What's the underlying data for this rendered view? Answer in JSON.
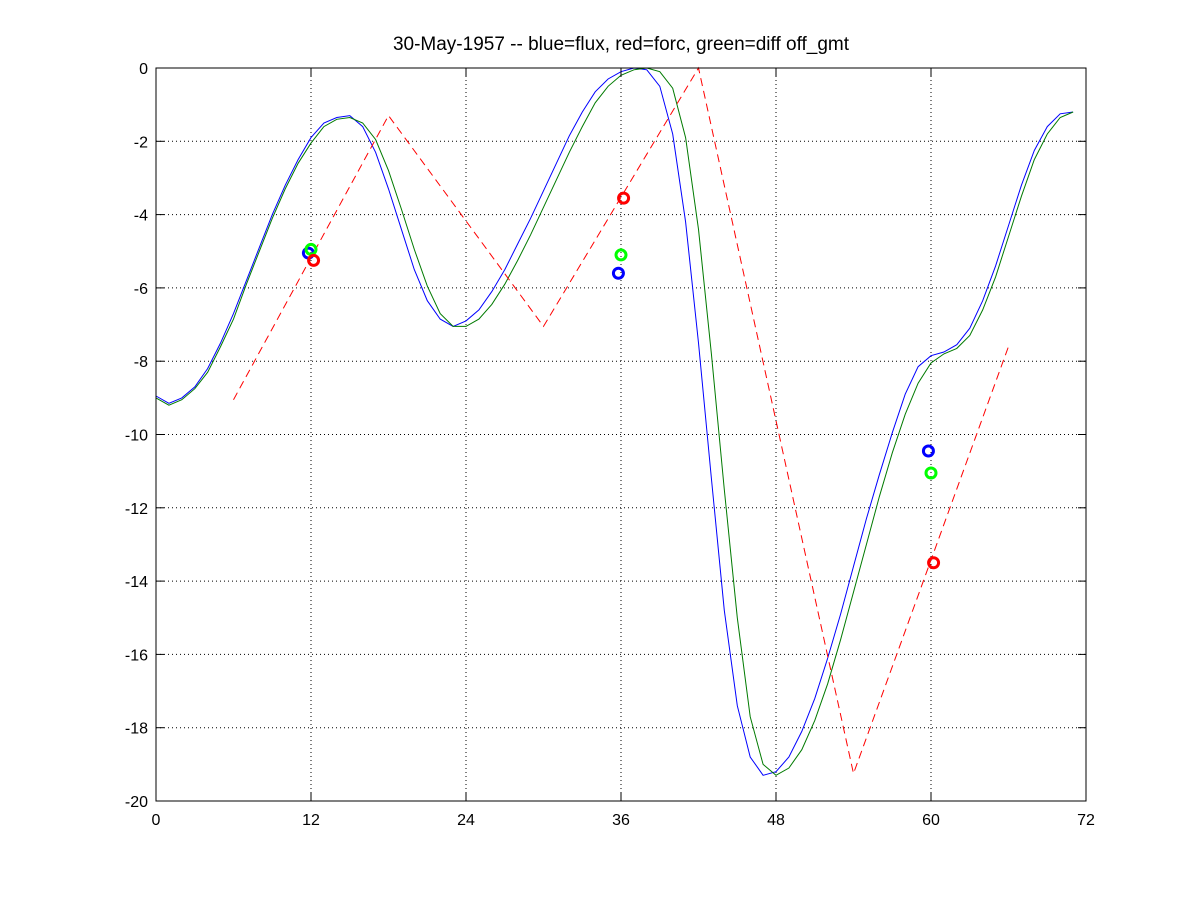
{
  "chart_data": {
    "type": "line",
    "title": "30-May-1957 -- blue=flux, red=forc, green=diff off_gmt",
    "xlabel": "",
    "ylabel": "",
    "xlim": [
      0,
      72
    ],
    "ylim": [
      -20,
      0
    ],
    "x_ticks": [
      0,
      12,
      24,
      36,
      48,
      60,
      72
    ],
    "y_ticks": [
      0,
      -2,
      -4,
      -6,
      -8,
      -10,
      -12,
      -14,
      -16,
      -18,
      -20
    ],
    "grid": true,
    "legend": "none",
    "series": [
      {
        "color": "#0000ff",
        "style": "solid",
        "x": [
          0,
          1,
          2,
          3,
          4,
          5,
          6,
          7,
          8,
          9,
          10,
          11,
          12,
          13,
          14,
          15,
          16,
          17,
          18,
          19,
          20,
          21,
          22,
          23,
          24,
          25,
          26,
          27,
          28,
          29,
          30,
          31,
          32,
          33,
          34,
          35,
          36,
          37,
          38,
          39,
          40,
          41,
          42,
          43,
          44,
          45,
          46,
          47,
          48,
          49,
          50,
          51,
          52,
          53,
          54,
          55,
          56,
          57,
          58,
          59,
          60,
          61,
          62,
          63,
          64,
          65,
          66,
          67,
          68,
          69,
          70,
          71
        ],
        "y": [
          -8.95,
          -9.15,
          -9.0,
          -8.7,
          -8.2,
          -7.5,
          -6.7,
          -5.8,
          -4.9,
          -4.0,
          -3.2,
          -2.5,
          -1.9,
          -1.5,
          -1.35,
          -1.3,
          -1.6,
          -2.3,
          -3.3,
          -4.4,
          -5.5,
          -6.35,
          -6.85,
          -7.05,
          -6.9,
          -6.6,
          -6.1,
          -5.5,
          -4.8,
          -4.1,
          -3.35,
          -2.6,
          -1.85,
          -1.2,
          -0.65,
          -0.3,
          -0.1,
          0.0,
          -0.05,
          -0.5,
          -1.8,
          -4.2,
          -7.5,
          -11.2,
          -14.8,
          -17.4,
          -18.8,
          -19.3,
          -19.2,
          -18.8,
          -18.1,
          -17.2,
          -16.1,
          -14.9,
          -13.6,
          -12.3,
          -11.1,
          -9.95,
          -8.9,
          -8.15,
          -7.85,
          -7.75,
          -7.55,
          -7.1,
          -6.35,
          -5.4,
          -4.3,
          -3.2,
          -2.25,
          -1.6,
          -1.25,
          -1.2
        ]
      },
      {
        "color": "#007a00",
        "style": "solid",
        "x": [
          0,
          1,
          2,
          3,
          4,
          5,
          6,
          7,
          8,
          9,
          10,
          11,
          12,
          13,
          14,
          15,
          16,
          17,
          18,
          19,
          20,
          21,
          22,
          23,
          24,
          25,
          26,
          27,
          28,
          29,
          30,
          31,
          32,
          33,
          34,
          35,
          36,
          37,
          38,
          39,
          40,
          41,
          42,
          43,
          44,
          45,
          46,
          47,
          48,
          49,
          50,
          51,
          52,
          53,
          54,
          55,
          56,
          57,
          58,
          59,
          60,
          61,
          62,
          63,
          64,
          65,
          66,
          67,
          68,
          69,
          70,
          71
        ],
        "y": [
          -9.0,
          -9.2,
          -9.05,
          -8.75,
          -8.3,
          -7.6,
          -6.85,
          -5.9,
          -5.0,
          -4.1,
          -3.3,
          -2.6,
          -2.05,
          -1.6,
          -1.4,
          -1.35,
          -1.5,
          -1.95,
          -2.8,
          -3.85,
          -4.95,
          -5.95,
          -6.7,
          -7.05,
          -7.05,
          -6.85,
          -6.45,
          -5.9,
          -5.25,
          -4.55,
          -3.8,
          -3.05,
          -2.3,
          -1.6,
          -0.95,
          -0.5,
          -0.2,
          -0.05,
          0.0,
          -0.1,
          -0.55,
          -1.9,
          -4.4,
          -7.8,
          -11.5,
          -15.0,
          -17.7,
          -19.0,
          -19.3,
          -19.1,
          -18.6,
          -17.8,
          -16.8,
          -15.6,
          -14.3,
          -13.0,
          -11.7,
          -10.5,
          -9.45,
          -8.6,
          -8.05,
          -7.8,
          -7.65,
          -7.3,
          -6.6,
          -5.7,
          -4.6,
          -3.5,
          -2.5,
          -1.8,
          -1.35,
          -1.2
        ]
      },
      {
        "color": "#ff0000",
        "style": "dashed",
        "x": [
          6,
          18,
          30,
          42,
          54,
          66
        ],
        "y": [
          -9.05,
          -1.3,
          -7.05,
          0.0,
          -19.25,
          -7.6
        ]
      }
    ],
    "markers": [
      {
        "color": "#0000ff",
        "x": 11.8,
        "y": -5.05
      },
      {
        "color": "#00ff00",
        "x": 12.0,
        "y": -4.95
      },
      {
        "color": "#ff0000",
        "x": 12.2,
        "y": -5.25
      },
      {
        "color": "#ff0000",
        "x": 36.2,
        "y": -3.55
      },
      {
        "color": "#00ff00",
        "x": 36.0,
        "y": -5.1
      },
      {
        "color": "#0000ff",
        "x": 35.8,
        "y": -5.6
      },
      {
        "color": "#0000ff",
        "x": 59.8,
        "y": -10.45
      },
      {
        "color": "#00ff00",
        "x": 60.0,
        "y": -11.05
      },
      {
        "color": "#ff0000",
        "x": 60.2,
        "y": -13.5
      }
    ]
  }
}
